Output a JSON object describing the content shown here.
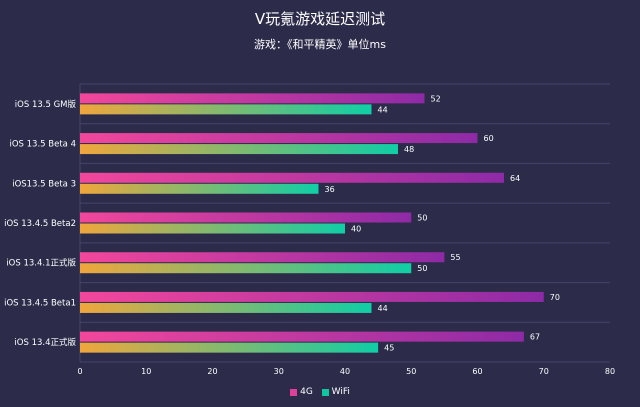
{
  "chart_data": {
    "type": "bar",
    "orientation": "horizontal",
    "title": "V玩氪游戏延迟测试",
    "subtitle": "游戏：《和平精英》单位ms",
    "categories": [
      "iOS 13.5 GM版",
      "iOS 13.5 Beta 4",
      "iOS13.5 Beta 3",
      "iOS 13.4.5 Beta2",
      "iOS 13.4.1正式版",
      "iOS 13.4.5 Beta1",
      "iOS 13.4正式版"
    ],
    "series": [
      {
        "name": "4G",
        "values": [
          52,
          60,
          64,
          50,
          55,
          70,
          67
        ],
        "color": "#e0409a"
      },
      {
        "name": "WiFi",
        "values": [
          44,
          48,
          36,
          40,
          50,
          44,
          45
        ],
        "color": "#12c6a0"
      }
    ],
    "xlim": [
      0,
      80
    ],
    "xticks": [
      0,
      10,
      20,
      30,
      40,
      50,
      60,
      70,
      80
    ],
    "grid": true,
    "legend_position": "bottom-center"
  },
  "colors": {
    "background": "#2c2b4a",
    "gridline": "#45446a",
    "g4_start": "#f2479b",
    "g4_end": "#8e2aa6",
    "wifi_start": "#f0a63c",
    "wifi_end": "#0fcea6"
  }
}
